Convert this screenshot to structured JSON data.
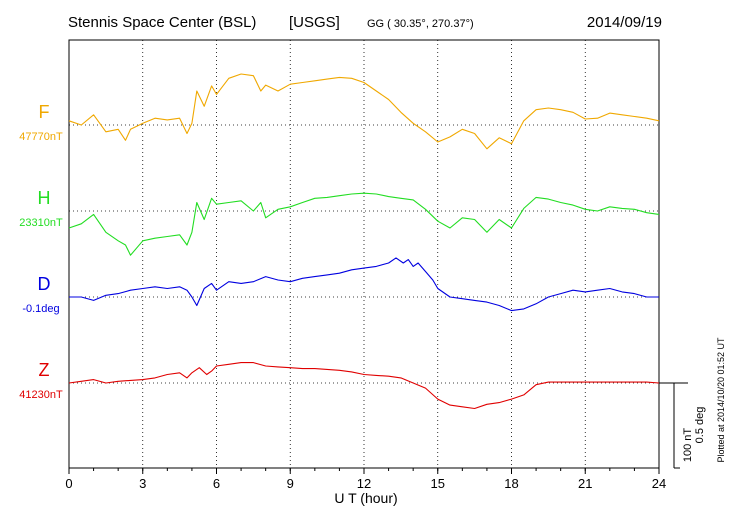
{
  "header": {
    "station": "Stennis Space Center (BSL)",
    "agency": "[USGS]",
    "coords": "GG ( 30.35°, 270.37°)",
    "date": "2014/09/19"
  },
  "footer": {
    "plotted_note": "Plotted at 2014/10/20 01:52 UT"
  },
  "chart_data": {
    "type": "line",
    "xlabel": "U T (hour)",
    "xlim": [
      0,
      24
    ],
    "xticks": [
      "0",
      "3",
      "6",
      "9",
      "12",
      "15",
      "18",
      "21",
      "24"
    ],
    "grid": true,
    "scale_bar": {
      "label_nt": "100 nT",
      "label_deg": "0.5 deg",
      "nt": 100,
      "deg": 0.5
    },
    "series": [
      {
        "name": "F",
        "baseline_label": "47770nT",
        "baseline": 47770,
        "unit": "nT",
        "color": "#f0a800",
        "x": [
          0,
          0.5,
          1,
          1.5,
          2,
          2.3,
          2.5,
          3,
          3.5,
          4,
          4.5,
          4.8,
          5,
          5.2,
          5.5,
          5.8,
          6,
          6.5,
          7,
          7.5,
          7.8,
          8,
          8.5,
          9,
          9.5,
          10,
          10.5,
          11,
          11.5,
          12,
          12.5,
          13,
          13.5,
          14,
          14.5,
          15,
          15.5,
          16,
          16.5,
          17,
          17.5,
          18,
          18.5,
          19,
          19.5,
          20,
          20.5,
          21,
          21.5,
          22,
          22.5,
          23,
          23.5,
          24
        ],
        "values": [
          47775,
          47770,
          47782,
          47762,
          47765,
          47752,
          47765,
          47772,
          47778,
          47776,
          47778,
          47760,
          47772,
          47810,
          47792,
          47816,
          47806,
          47825,
          47830,
          47828,
          47810,
          47817,
          47810,
          47818,
          47820,
          47822,
          47824,
          47826,
          47825,
          47820,
          47810,
          47800,
          47785,
          47772,
          47762,
          47750,
          47756,
          47765,
          47760,
          47742,
          47755,
          47748,
          47775,
          47788,
          47790,
          47788,
          47785,
          47777,
          47778,
          47784,
          47782,
          47780,
          47778,
          47775
        ]
      },
      {
        "name": "H",
        "baseline_label": "23310nT",
        "baseline": 23310,
        "unit": "nT",
        "color": "#22dd22",
        "x": [
          0,
          0.5,
          1,
          1.5,
          2,
          2.3,
          2.5,
          3,
          3.5,
          4,
          4.5,
          4.8,
          5,
          5.2,
          5.5,
          5.8,
          6,
          6.5,
          7,
          7.5,
          7.8,
          8,
          8.5,
          9,
          9.5,
          10,
          10.5,
          11,
          11.5,
          12,
          12.5,
          13,
          13.5,
          14,
          14.5,
          15,
          15.5,
          16,
          16.5,
          17,
          17.5,
          18,
          18.5,
          19,
          19.5,
          20,
          20.5,
          21,
          21.5,
          22,
          22.5,
          23,
          23.5,
          24
        ],
        "values": [
          23290,
          23295,
          23306,
          23285,
          23275,
          23270,
          23258,
          23275,
          23278,
          23280,
          23282,
          23270,
          23285,
          23320,
          23300,
          23325,
          23318,
          23320,
          23322,
          23310,
          23320,
          23302,
          23312,
          23315,
          23320,
          23325,
          23326,
          23328,
          23330,
          23331,
          23330,
          23327,
          23325,
          23323,
          23312,
          23298,
          23290,
          23302,
          23300,
          23285,
          23300,
          23290,
          23313,
          23326,
          23324,
          23320,
          23317,
          23312,
          23310,
          23315,
          23313,
          23312,
          23308,
          23306
        ]
      },
      {
        "name": "D",
        "baseline_label": "-0.1deg",
        "baseline": -0.1,
        "unit": "deg",
        "color": "#0000e0",
        "x": [
          0,
          0.5,
          1,
          1.5,
          2,
          2.5,
          3,
          3.5,
          4,
          4.5,
          4.8,
          5,
          5.2,
          5.5,
          5.8,
          6,
          6.5,
          7,
          7.5,
          8,
          8.5,
          9,
          9.5,
          10,
          10.5,
          11,
          11.5,
          12,
          12.5,
          13,
          13.3,
          13.6,
          13.8,
          14,
          14.2,
          14.5,
          14.8,
          15,
          15.5,
          16,
          16.5,
          17,
          17.5,
          18,
          18.5,
          19,
          19.5,
          20,
          20.5,
          21,
          21.5,
          22,
          22.5,
          23,
          23.5,
          24
        ],
        "values": [
          -0.1,
          -0.1,
          -0.12,
          -0.09,
          -0.08,
          -0.06,
          -0.05,
          -0.04,
          -0.05,
          -0.04,
          -0.06,
          -0.1,
          -0.15,
          -0.05,
          -0.02,
          -0.06,
          -0.01,
          -0.02,
          -0.01,
          0.02,
          0,
          -0.01,
          0.01,
          0.02,
          0.03,
          0.04,
          0.06,
          0.07,
          0.08,
          0.1,
          0.13,
          0.1,
          0.12,
          0.08,
          0.1,
          0.05,
          0,
          -0.05,
          -0.1,
          -0.11,
          -0.12,
          -0.13,
          -0.15,
          -0.18,
          -0.17,
          -0.14,
          -0.1,
          -0.08,
          -0.06,
          -0.07,
          -0.06,
          -0.05,
          -0.07,
          -0.08,
          -0.1,
          -0.1
        ]
      },
      {
        "name": "Z",
        "baseline_label": "41230nT",
        "baseline": 41230,
        "unit": "nT",
        "color": "#e00000",
        "x": [
          0,
          0.5,
          1,
          1.5,
          2,
          2.5,
          3,
          3.5,
          4,
          4.5,
          4.8,
          5,
          5.3,
          5.6,
          5.8,
          6,
          6.5,
          7,
          7.5,
          8,
          8.5,
          9,
          9.5,
          10,
          10.5,
          11,
          11.5,
          12,
          12.5,
          13,
          13.5,
          14,
          14.5,
          15,
          15.5,
          16,
          16.5,
          17,
          17.5,
          18,
          18.5,
          19,
          19.5,
          20,
          20.5,
          21,
          21.5,
          22,
          22.5,
          23,
          23.5,
          24
        ],
        "values": [
          41230,
          41232,
          41234,
          41230,
          41232,
          41233,
          41234,
          41236,
          41240,
          41242,
          41236,
          41242,
          41248,
          41240,
          41244,
          41250,
          41252,
          41254,
          41254,
          41250,
          41249,
          41248,
          41247,
          41247,
          41246,
          41245,
          41243,
          41240,
          41239,
          41238,
          41236,
          41230,
          41224,
          41211,
          41204,
          41202,
          41200,
          41205,
          41207,
          41211,
          41216,
          41228,
          41231,
          41231,
          41231,
          41231,
          41231,
          41231,
          41231,
          41231,
          41231,
          41230
        ]
      }
    ]
  }
}
